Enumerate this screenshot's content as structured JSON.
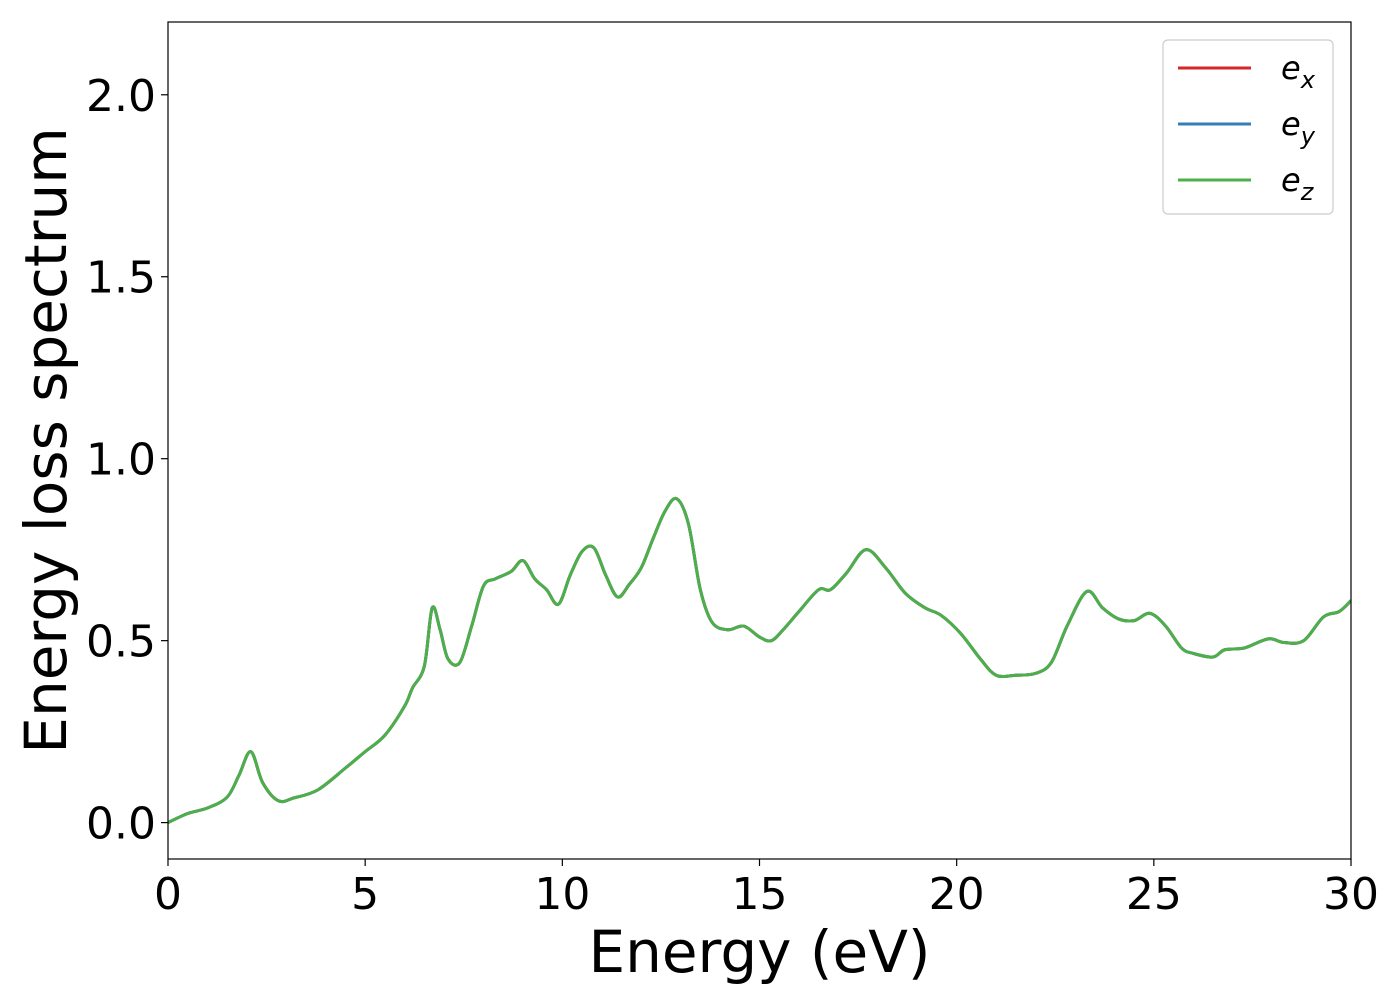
{
  "chart_data": {
    "type": "line",
    "title": "",
    "xlabel": "Energy (eV)",
    "ylabel": "Energy loss spectrum",
    "xlim": [
      0,
      30
    ],
    "ylim": [
      -0.1,
      2.2
    ],
    "xticks": [
      0,
      5,
      10,
      15,
      20,
      25,
      30
    ],
    "xtick_labels": [
      "0",
      "5",
      "10",
      "15",
      "20",
      "25",
      "30"
    ],
    "yticks": [
      0.0,
      0.5,
      1.0,
      1.5,
      2.0
    ],
    "ytick_labels": [
      "0.0",
      "0.5",
      "1.0",
      "1.5",
      "2.0"
    ],
    "grid": false,
    "legend_position": "top-right",
    "x": [
      0,
      0.5,
      1.0,
      1.5,
      1.8,
      2.1,
      2.4,
      2.8,
      3.2,
      3.8,
      4.5,
      5.0,
      5.5,
      6.0,
      6.2,
      6.5,
      6.7,
      6.9,
      7.1,
      7.4,
      7.7,
      8.0,
      8.3,
      8.7,
      9.0,
      9.3,
      9.6,
      9.9,
      10.2,
      10.5,
      10.8,
      11.1,
      11.4,
      11.7,
      12.0,
      12.3,
      12.6,
      12.9,
      13.2,
      13.5,
      13.8,
      14.2,
      14.6,
      15.0,
      15.3,
      15.6,
      16.0,
      16.5,
      16.8,
      17.2,
      17.7,
      18.2,
      18.7,
      19.2,
      19.6,
      20.1,
      20.6,
      21.0,
      21.5,
      22.0,
      22.4,
      22.8,
      23.3,
      23.7,
      24.1,
      24.5,
      24.9,
      25.3,
      25.7,
      26.0,
      26.5,
      26.8,
      27.3,
      27.9,
      28.3,
      28.8,
      29.3,
      29.7,
      30.0
    ],
    "series": [
      {
        "name": "e_x",
        "color": "#d62728",
        "values": [
          0.0,
          0.025,
          0.04,
          0.07,
          0.13,
          0.195,
          0.11,
          0.06,
          0.068,
          0.09,
          0.15,
          0.195,
          0.24,
          0.32,
          0.37,
          0.43,
          0.59,
          0.53,
          0.45,
          0.44,
          0.54,
          0.65,
          0.67,
          0.69,
          0.72,
          0.67,
          0.64,
          0.6,
          0.68,
          0.745,
          0.755,
          0.68,
          0.62,
          0.655,
          0.7,
          0.78,
          0.855,
          0.89,
          0.82,
          0.64,
          0.55,
          0.53,
          0.54,
          0.51,
          0.5,
          0.53,
          0.58,
          0.64,
          0.64,
          0.685,
          0.75,
          0.7,
          0.63,
          0.59,
          0.57,
          0.52,
          0.45,
          0.405,
          0.405,
          0.41,
          0.44,
          0.54,
          0.635,
          0.59,
          0.56,
          0.555,
          0.575,
          0.54,
          0.48,
          0.465,
          0.455,
          0.475,
          0.48,
          0.505,
          0.495,
          0.5,
          0.565,
          0.58,
          0.61
        ]
      },
      {
        "name": "e_y",
        "color": "#377eb8",
        "values": [
          0.0,
          0.025,
          0.04,
          0.07,
          0.13,
          0.195,
          0.11,
          0.06,
          0.068,
          0.09,
          0.15,
          0.195,
          0.24,
          0.32,
          0.37,
          0.43,
          0.59,
          0.53,
          0.45,
          0.44,
          0.54,
          0.65,
          0.67,
          0.69,
          0.72,
          0.67,
          0.64,
          0.6,
          0.68,
          0.745,
          0.755,
          0.68,
          0.62,
          0.655,
          0.7,
          0.78,
          0.855,
          0.89,
          0.82,
          0.64,
          0.55,
          0.53,
          0.54,
          0.51,
          0.5,
          0.53,
          0.58,
          0.64,
          0.64,
          0.685,
          0.75,
          0.7,
          0.63,
          0.59,
          0.57,
          0.52,
          0.45,
          0.405,
          0.405,
          0.41,
          0.44,
          0.54,
          0.635,
          0.59,
          0.56,
          0.555,
          0.575,
          0.54,
          0.48,
          0.465,
          0.455,
          0.475,
          0.48,
          0.505,
          0.495,
          0.5,
          0.565,
          0.58,
          0.61
        ]
      },
      {
        "name": "e_z",
        "color": "#4daf4a",
        "values": [
          0.0,
          0.025,
          0.04,
          0.07,
          0.13,
          0.195,
          0.11,
          0.06,
          0.068,
          0.09,
          0.15,
          0.195,
          0.24,
          0.32,
          0.37,
          0.43,
          0.59,
          0.53,
          0.45,
          0.44,
          0.54,
          0.65,
          0.67,
          0.69,
          0.72,
          0.67,
          0.64,
          0.6,
          0.68,
          0.745,
          0.755,
          0.68,
          0.62,
          0.655,
          0.7,
          0.78,
          0.855,
          0.89,
          0.82,
          0.64,
          0.55,
          0.53,
          0.54,
          0.51,
          0.5,
          0.53,
          0.58,
          0.64,
          0.64,
          0.685,
          0.75,
          0.7,
          0.63,
          0.59,
          0.57,
          0.52,
          0.45,
          0.405,
          0.405,
          0.41,
          0.44,
          0.54,
          0.635,
          0.59,
          0.56,
          0.555,
          0.575,
          0.54,
          0.48,
          0.465,
          0.455,
          0.475,
          0.48,
          0.505,
          0.495,
          0.5,
          0.565,
          0.58,
          0.61
        ]
      }
    ]
  }
}
